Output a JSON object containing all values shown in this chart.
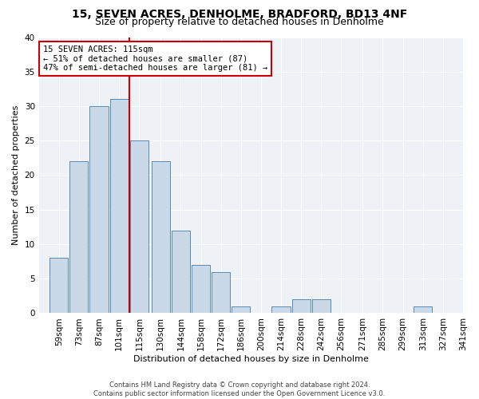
{
  "title": "15, SEVEN ACRES, DENHOLME, BRADFORD, BD13 4NF",
  "subtitle": "Size of property relative to detached houses in Denholme",
  "xlabel": "Distribution of detached houses by size in Denholme",
  "ylabel": "Number of detached properties",
  "bins": [
    59,
    73,
    87,
    101,
    115,
    130,
    144,
    158,
    172,
    186,
    200,
    214,
    228,
    242,
    256,
    271,
    285,
    299,
    313,
    327,
    341
  ],
  "bin_labels": [
    "59sqm",
    "73sqm",
    "87sqm",
    "101sqm",
    "115sqm",
    "130sqm",
    "144sqm",
    "158sqm",
    "172sqm",
    "186sqm",
    "200sqm",
    "214sqm",
    "228sqm",
    "242sqm",
    "256sqm",
    "271sqm",
    "285sqm",
    "299sqm",
    "313sqm",
    "327sqm",
    "341sqm"
  ],
  "counts": [
    8,
    22,
    30,
    31,
    25,
    22,
    12,
    7,
    6,
    1,
    0,
    1,
    2,
    2,
    0,
    0,
    0,
    0,
    1,
    0
  ],
  "bar_color": "#c9d9e8",
  "bar_edge_color": "#5a8ab0",
  "reference_line_x": 115,
  "reference_line_color": "#cc0000",
  "annotation_line1": "15 SEVEN ACRES: 115sqm",
  "annotation_line2": "← 51% of detached houses are smaller (87)",
  "annotation_line3": "47% of semi-detached houses are larger (81) →",
  "annotation_box_color": "#cc0000",
  "ylim": [
    0,
    40
  ],
  "yticks": [
    0,
    5,
    10,
    15,
    20,
    25,
    30,
    35,
    40
  ],
  "footer_line1": "Contains HM Land Registry data © Crown copyright and database right 2024.",
  "footer_line2": "Contains public sector information licensed under the Open Government Licence v3.0.",
  "plot_bg_color": "#eef2f7",
  "title_fontsize": 10,
  "subtitle_fontsize": 9,
  "axis_label_fontsize": 8,
  "tick_fontsize": 7.5,
  "annotation_fontsize": 7.5
}
